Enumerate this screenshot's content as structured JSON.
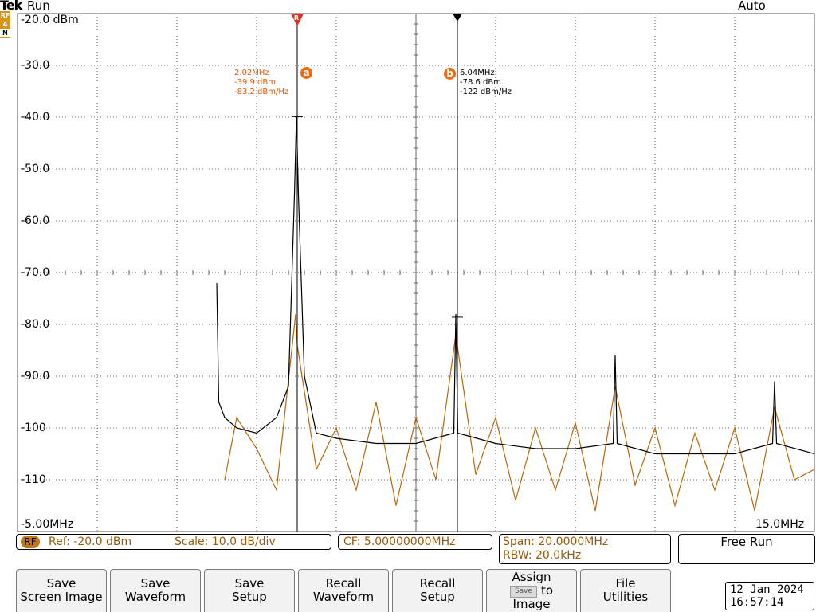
{
  "top": {
    "brand": "Tek",
    "state": "Run",
    "trigger": "Auto",
    "indicator": [
      "RF",
      "A",
      "N"
    ]
  },
  "chart_data": {
    "type": "line",
    "xlabel": "",
    "ylabel": "",
    "xlim_mhz": [
      -5.0,
      15.0
    ],
    "ylim_dbm": [
      -120,
      -20
    ],
    "y_ticks": [
      "-20.0 dBm",
      "-30.0",
      "-40.0",
      "-50.0",
      "-60.0",
      "-70.0",
      "-80.0",
      "-90.0",
      "-100",
      "-110"
    ],
    "x_left_label": "-5.00MHz",
    "x_right_label": "15.0MHz",
    "grid": true,
    "series": [
      {
        "color": "#000000",
        "points": [
          [
            0.0,
            -72
          ],
          [
            0.05,
            -95
          ],
          [
            0.2,
            -98
          ],
          [
            0.5,
            -100
          ],
          [
            1.0,
            -101
          ],
          [
            1.5,
            -98
          ],
          [
            1.8,
            -92
          ],
          [
            1.95,
            -55
          ],
          [
            2.0,
            -40
          ],
          [
            2.05,
            -55
          ],
          [
            2.2,
            -90
          ],
          [
            2.5,
            -101
          ],
          [
            3.0,
            -102
          ],
          [
            4.0,
            -103
          ],
          [
            5.0,
            -103
          ],
          [
            5.95,
            -101
          ],
          [
            6.0,
            -78
          ],
          [
            6.05,
            -101
          ],
          [
            7.0,
            -103
          ],
          [
            8.0,
            -104
          ],
          [
            9.0,
            -104
          ],
          [
            9.95,
            -103
          ],
          [
            10.0,
            -86
          ],
          [
            10.05,
            -103
          ],
          [
            11.0,
            -105
          ],
          [
            12.0,
            -105
          ],
          [
            13.0,
            -105
          ],
          [
            13.95,
            -103
          ],
          [
            14.0,
            -91
          ],
          [
            14.05,
            -103
          ],
          [
            15.0,
            -105
          ]
        ]
      },
      {
        "color": "#b8660a",
        "points": [
          [
            0.2,
            -110
          ],
          [
            0.5,
            -98
          ],
          [
            1.0,
            -104
          ],
          [
            1.5,
            -112
          ],
          [
            1.98,
            -78
          ],
          [
            2.02,
            -84
          ],
          [
            2.5,
            -108
          ],
          [
            3.0,
            -100
          ],
          [
            3.5,
            -112
          ],
          [
            4.0,
            -95
          ],
          [
            4.5,
            -115
          ],
          [
            5.0,
            -98
          ],
          [
            5.5,
            -110
          ],
          [
            6.0,
            -82
          ],
          [
            6.5,
            -109
          ],
          [
            7.0,
            -98
          ],
          [
            7.5,
            -114
          ],
          [
            8.0,
            -100
          ],
          [
            8.5,
            -112
          ],
          [
            9.0,
            -99
          ],
          [
            9.5,
            -116
          ],
          [
            10.0,
            -92
          ],
          [
            10.5,
            -111
          ],
          [
            11.0,
            -100
          ],
          [
            11.5,
            -115
          ],
          [
            12.0,
            -101
          ],
          [
            12.5,
            -112
          ],
          [
            13.0,
            -100
          ],
          [
            13.5,
            -116
          ],
          [
            14.0,
            -96
          ],
          [
            14.5,
            -110
          ],
          [
            15.0,
            -108
          ]
        ]
      }
    ]
  },
  "markers": {
    "a": {
      "badge": "a",
      "ref_glyph": "R",
      "freq_mhz": 2.02,
      "readout": [
        "2.02MHz",
        "-39.9 dBm",
        "-83.2 dBm/Hz"
      ]
    },
    "b": {
      "badge": "b",
      "freq_mhz": 6.04,
      "readout": [
        "6.04MHz",
        "-78.6 dBm",
        "-122 dBm/Hz"
      ]
    }
  },
  "status": {
    "rf_badge": "RF",
    "ref": "Ref: -20.0 dBm",
    "scale": "Scale: 10.0 dB/div",
    "cf": "CF:  5.00000000MHz",
    "span": "Span:    20.0000MHz",
    "rbw": "RBW:    20.0kHz",
    "mode": "Free Run"
  },
  "softkeys": [
    {
      "line1": "Save",
      "line2": "Screen Image"
    },
    {
      "line1": "Save",
      "line2": "Waveform"
    },
    {
      "line1": "Save",
      "line2": "Setup"
    },
    {
      "line1": "Recall",
      "line2": "Waveform"
    },
    {
      "line1": "Recall",
      "line2": "Setup"
    },
    {
      "line1": "Assign",
      "inline_button": "Save",
      "line2": "to",
      "line3": "Image"
    },
    {
      "line1": "File",
      "line2": "Utilities"
    }
  ],
  "datetime": {
    "date": "12 Jan  2024",
    "time": "16:57:14"
  },
  "colors": {
    "accent": "#b8660a",
    "marker_orange": "#f06a10",
    "marker_red": "#e03020"
  }
}
